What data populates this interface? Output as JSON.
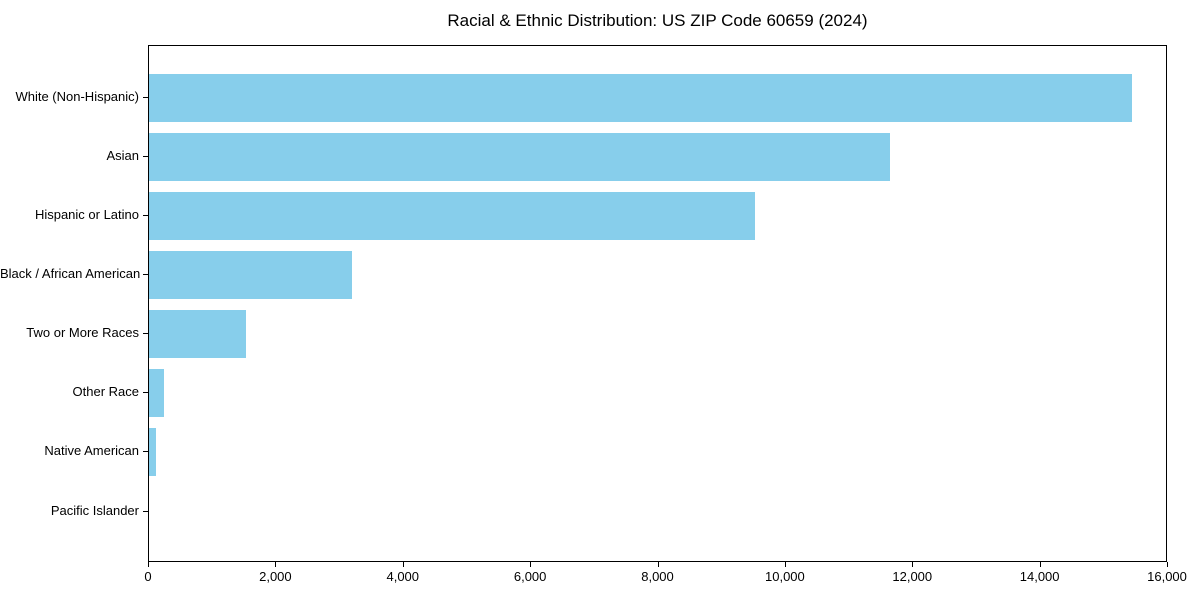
{
  "chart_data": {
    "type": "bar",
    "orientation": "horizontal",
    "title": "Racial & Ethnic Distribution: US ZIP Code 60659 (2024)",
    "categories": [
      "White (Non-Hispanic)",
      "Asian",
      "Hispanic or Latino",
      "Black / African American",
      "Two or More Races",
      "Other Race",
      "Native American",
      "Pacific Islander"
    ],
    "values": [
      15470,
      11650,
      9530,
      3200,
      1520,
      230,
      110,
      0
    ],
    "xlabel": "",
    "ylabel": "",
    "xlim": [
      0,
      16000
    ],
    "x_ticks": [
      0,
      2000,
      4000,
      6000,
      8000,
      10000,
      12000,
      14000,
      16000
    ],
    "x_tick_labels": [
      "0",
      "2,000",
      "4,000",
      "6,000",
      "8,000",
      "10,000",
      "12,000",
      "14,000",
      "16,000"
    ],
    "bar_color": "#87CEEB",
    "frame_color": "#000000",
    "background_color": "#ffffff",
    "grid": false,
    "legend": null
  }
}
